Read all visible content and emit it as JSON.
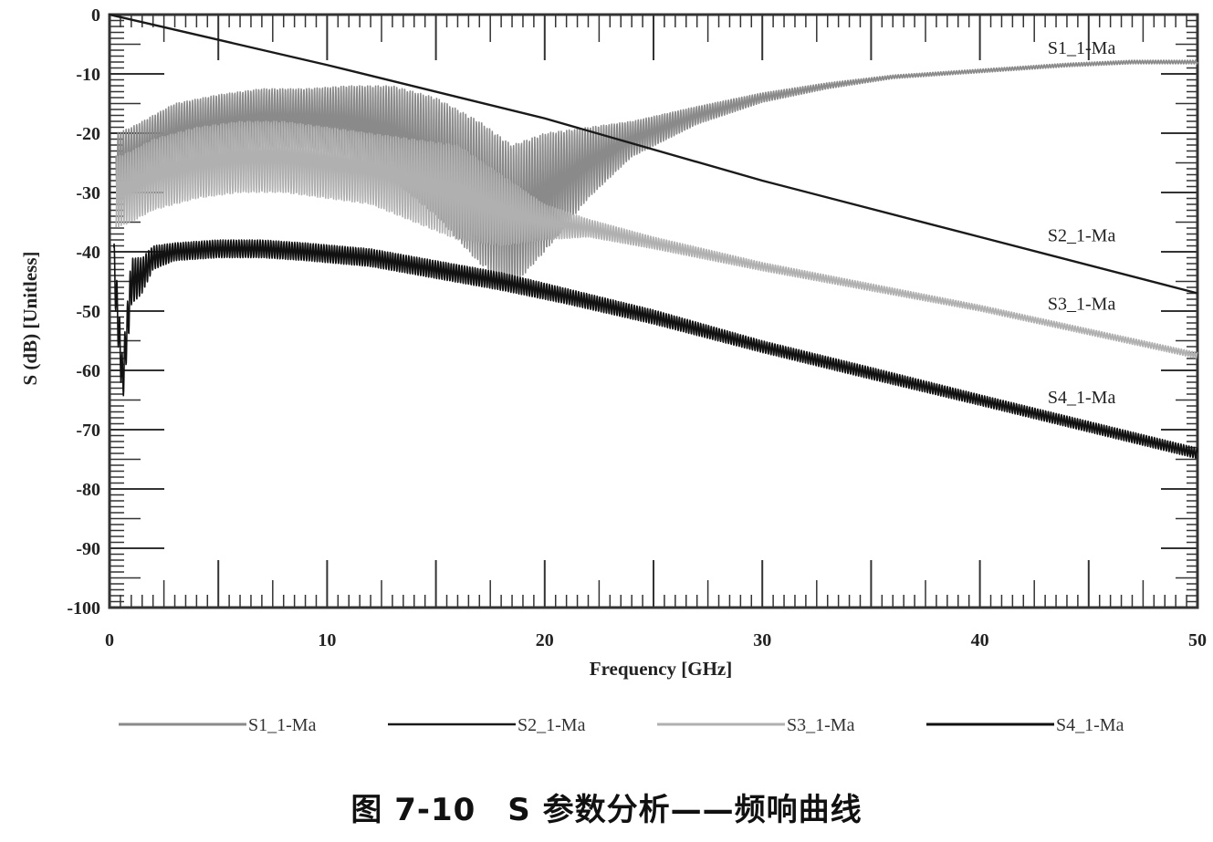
{
  "caption": "图 7-10　S 参数分析——频响曲线",
  "chart_data": {
    "type": "line",
    "xlabel": "Frequency [GHz]",
    "ylabel": "S (dB) [Unitless]",
    "xlim": [
      0,
      50
    ],
    "ylim": [
      -100,
      0
    ],
    "x_ticks": [
      "0",
      "10",
      "20",
      "30",
      "40",
      "50"
    ],
    "y_ticks": [
      "0",
      "-10",
      "-20",
      "-30",
      "-40",
      "-50",
      "-60",
      "-70",
      "-80",
      "-90",
      "-100"
    ],
    "grid": false,
    "legend_position": "bottom",
    "series": [
      {
        "name": "S1_1-Ma",
        "color": "#8a8a8a",
        "ripple": true,
        "x": [
          0.3,
          1,
          2,
          3,
          5,
          7,
          9,
          11,
          13,
          15,
          17,
          18.5,
          20,
          22,
          24,
          27,
          30,
          33,
          36,
          40,
          44,
          47,
          50
        ],
        "y": [
          -25,
          -24,
          -22,
          -20,
          -18.5,
          -17.5,
          -17.5,
          -18,
          -20,
          -24,
          -30,
          -34,
          -30,
          -25,
          -21,
          -17,
          -14,
          -12,
          -10.5,
          -9.5,
          -8.5,
          -8,
          -8
        ],
        "ripple_amplitude_db": [
          5,
          5,
          5,
          5,
          5,
          5,
          5,
          6,
          8,
          10,
          12,
          12,
          10,
          6,
          3,
          1.5,
          0.8,
          0.5,
          0.3,
          0.3,
          0.3,
          0.3,
          0.3
        ]
      },
      {
        "name": "S2_1-Ma",
        "color": "#1a1a1a",
        "ripple": false,
        "x": [
          0,
          10,
          20,
          30,
          40,
          50
        ],
        "y": [
          0,
          -8.5,
          -17.5,
          -28,
          -37.5,
          -47
        ]
      },
      {
        "name": "S3_1-Ma",
        "color": "#b0b0b0",
        "ripple": true,
        "x": [
          0.3,
          1,
          2,
          4,
          6,
          8,
          10,
          12,
          14,
          16,
          18,
          20,
          22,
          25,
          30,
          35,
          40,
          45,
          50
        ],
        "y": [
          -30,
          -29,
          -27,
          -25,
          -24,
          -24,
          -25,
          -26,
          -28,
          -30,
          -33,
          -35,
          -36,
          -38.5,
          -42.5,
          -46,
          -49.5,
          -53.5,
          -57.5
        ],
        "ripple_amplitude_db": [
          6,
          6,
          6,
          6,
          6,
          6,
          6,
          6,
          7,
          8,
          6,
          3,
          1.5,
          1,
          0.7,
          0.6,
          0.5,
          0.5,
          0.5
        ]
      },
      {
        "name": "S4_1-Ma",
        "color": "#111111",
        "ripple": true,
        "x": [
          0.2,
          0.6,
          1,
          1.5,
          2,
          3,
          5,
          7,
          9,
          12,
          15,
          18,
          21,
          25,
          30,
          35,
          40,
          45,
          50
        ],
        "y": [
          -42,
          -62,
          -45,
          -44,
          -41,
          -40,
          -39.5,
          -39.5,
          -40,
          -41,
          -43,
          -45,
          -47.5,
          -51,
          -56,
          -60.5,
          -65,
          -69.5,
          -74
        ],
        "ripple_amplitude_db": [
          4,
          4,
          4,
          3,
          2,
          1.5,
          1.5,
          1.5,
          1.5,
          1.5,
          1.5,
          1.5,
          1.3,
          1.2,
          1,
          1,
          0.9,
          0.9,
          0.9
        ]
      }
    ]
  }
}
